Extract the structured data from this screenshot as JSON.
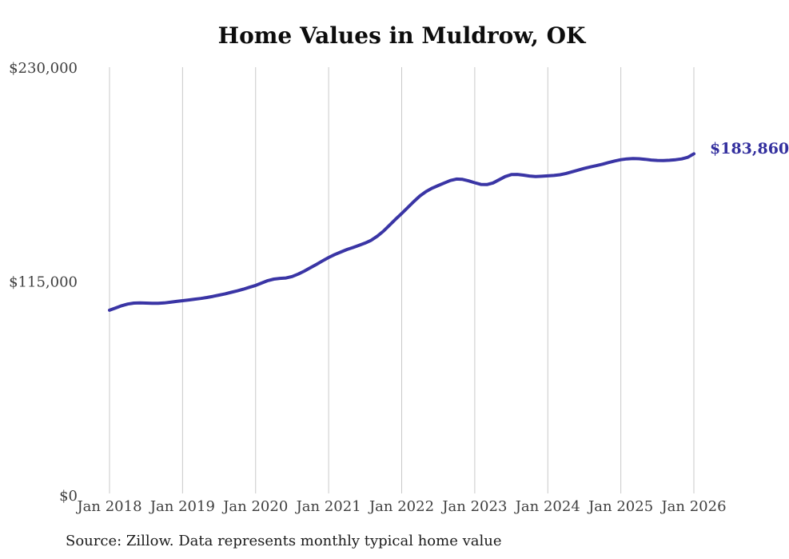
{
  "title": "Home Values in Muldrow, OK",
  "source_note": "Source: Zillow. Data represents monthly typical home value",
  "colors": {
    "line": "#3a35a5",
    "end_label": "#332f9e",
    "grid": "#c9c9c9",
    "axis_text": "#3f3f3f",
    "title_text": "#0d0d0d",
    "background": "#ffffff"
  },
  "chart_data": {
    "type": "line",
    "title": "Home Values in Muldrow, OK",
    "xlabel": "",
    "ylabel": "",
    "ylim": [
      0,
      230000
    ],
    "grid": "vertical-only",
    "legend": "none",
    "x_ticks": [
      "Jan 2018",
      "Jan 2019",
      "Jan 2020",
      "Jan 2021",
      "Jan 2022",
      "Jan 2023",
      "Jan 2024",
      "Jan 2025",
      "Jan 2026"
    ],
    "y_ticks": [
      {
        "label": "$0",
        "value": 0
      },
      {
        "label": "$115,000",
        "value": 115000
      },
      {
        "label": "$230,000",
        "value": 230000
      }
    ],
    "end_annotation": {
      "text": "$183,860",
      "value": 183860
    },
    "series": [
      {
        "name": "Monthly typical home value",
        "start": "Jan 2018",
        "end": "Jan 2026",
        "interval": "monthly",
        "values": [
          99800,
          101000,
          102200,
          103100,
          103600,
          103700,
          103600,
          103500,
          103500,
          103700,
          104100,
          104500,
          104900,
          105300,
          105700,
          106100,
          106600,
          107200,
          107900,
          108600,
          109400,
          110200,
          111100,
          112100,
          113100,
          114400,
          115700,
          116500,
          116900,
          117100,
          117900,
          119200,
          120800,
          122600,
          124400,
          126300,
          128100,
          129700,
          131100,
          132400,
          133500,
          134700,
          135900,
          137400,
          139600,
          142300,
          145500,
          148700,
          151800,
          155000,
          158200,
          161200,
          163600,
          165400,
          166800,
          168200,
          169500,
          170300,
          170100,
          169300,
          168300,
          167400,
          167300,
          168200,
          169900,
          171600,
          172700,
          172800,
          172400,
          171900,
          171600,
          171800,
          172000,
          172200,
          172600,
          173300,
          174200,
          175100,
          176000,
          176800,
          177500,
          178300,
          179200,
          180000,
          180700,
          181100,
          181300,
          181200,
          180900,
          180500,
          180300,
          180200,
          180400,
          180700,
          181100,
          182000,
          183860
        ]
      }
    ]
  }
}
